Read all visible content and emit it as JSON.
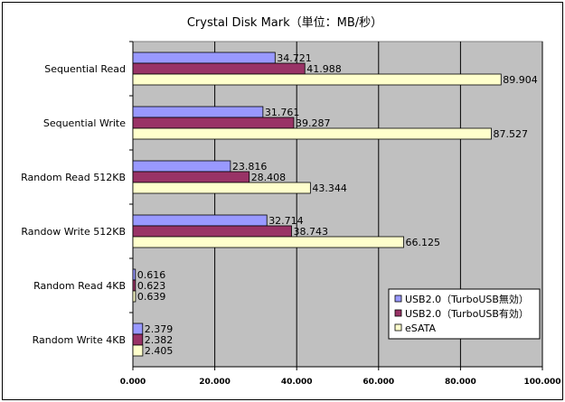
{
  "chart_data": {
    "type": "bar",
    "orientation": "horizontal",
    "title": "Crystal Disk Mark（単位：MB/秒）",
    "categories": [
      "Sequential Read",
      "Sequential Write",
      "Random Read 512KB",
      "Randow Write 512KB",
      "Random Read 4KB",
      "Random Write 4KB"
    ],
    "series": [
      {
        "name": "USB2.0（TurboUSB無効）",
        "color": "#9999ff",
        "values": [
          34.721,
          31.761,
          23.816,
          32.714,
          0.616,
          2.379
        ],
        "labels": [
          "34.721",
          "31.761",
          "23.816",
          "32.714",
          "0.616",
          "2.379"
        ]
      },
      {
        "name": "USB2.0（TurboUSB有効）",
        "color": "#993366",
        "values": [
          41.988,
          39.287,
          28.408,
          38.743,
          0.623,
          2.382
        ],
        "labels": [
          "41.988",
          "39.287",
          "28.408",
          "38.743",
          "0.623",
          "2.382"
        ]
      },
      {
        "name": "eSATA",
        "color": "#ffffcc",
        "values": [
          89.904,
          87.527,
          43.344,
          66.125,
          0.639,
          2.405
        ],
        "labels": [
          "89.904",
          "87.527",
          "43.344",
          "66.125",
          "0.639",
          "2.405"
        ]
      }
    ],
    "xlim": [
      0,
      100
    ],
    "xticks": [
      "0.000",
      "20.000",
      "40.000",
      "60.000",
      "80.000",
      "100.000"
    ],
    "xtick_values": [
      0,
      20,
      40,
      60,
      80,
      100
    ],
    "plot_background": "#c0c0c0",
    "grid": true,
    "legend": "bottom-right"
  }
}
